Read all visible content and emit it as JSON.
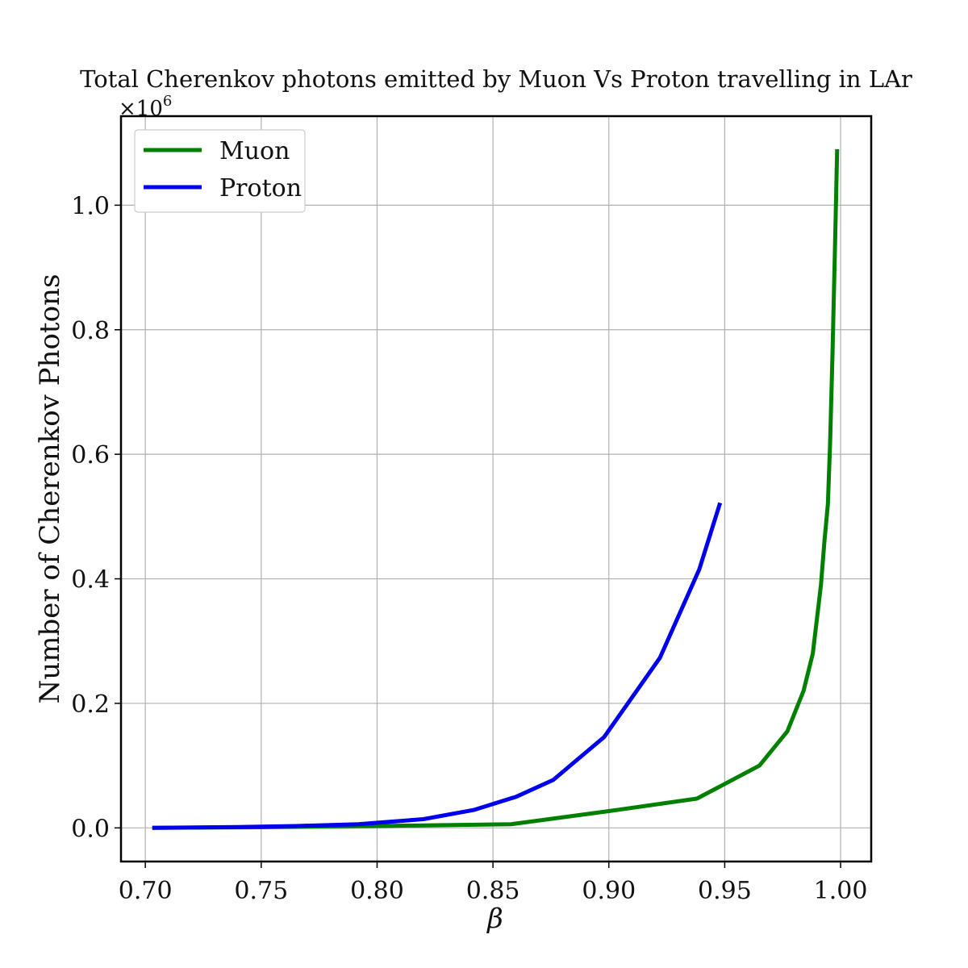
{
  "chart_data": {
    "type": "line",
    "title": "Total Cherenkov photons emitted by Muon Vs Proton travelling in LAr",
    "xlabel": "β",
    "ylabel": "Number of Cherenkov Photons",
    "y_offset_label": "×10",
    "y_offset_exponent": "6",
    "xlim": [
      0.6895,
      1.0132
    ],
    "ylim": [
      -0.054,
      1.143
    ],
    "x_ticks": [
      0.7,
      0.75,
      0.8,
      0.85,
      0.9,
      0.95,
      1.0
    ],
    "x_tick_labels": [
      "0.70",
      "0.75",
      "0.80",
      "0.85",
      "0.90",
      "0.95",
      "1.00"
    ],
    "y_ticks": [
      0.0,
      0.2,
      0.4,
      0.6,
      0.8,
      1.0
    ],
    "y_tick_labels": [
      "0.0",
      "0.2",
      "0.4",
      "0.6",
      "0.8",
      "1.0"
    ],
    "grid": true,
    "legend_position": "top-left",
    "series": [
      {
        "name": "Muon",
        "color": "#008000",
        "x": [
          0.703,
          0.75,
          0.8,
          0.858,
          0.9,
          0.938,
          0.965,
          0.977,
          0.984,
          0.988,
          0.9915,
          0.993,
          0.9945,
          0.9955,
          0.9965,
          0.9975,
          0.9985
        ],
        "y": [
          0.0,
          0.001,
          0.003,
          0.006,
          0.027,
          0.047,
          0.1,
          0.155,
          0.22,
          0.28,
          0.39,
          0.46,
          0.52,
          0.62,
          0.76,
          0.92,
          1.09
        ]
      },
      {
        "name": "Proton",
        "color": "#0000ee",
        "x": [
          0.703,
          0.74,
          0.765,
          0.792,
          0.82,
          0.842,
          0.86,
          0.876,
          0.898,
          0.922,
          0.939,
          0.948
        ],
        "y": [
          0.0,
          0.0015,
          0.003,
          0.006,
          0.014,
          0.029,
          0.05,
          0.077,
          0.146,
          0.273,
          0.415,
          0.522
        ]
      }
    ]
  }
}
